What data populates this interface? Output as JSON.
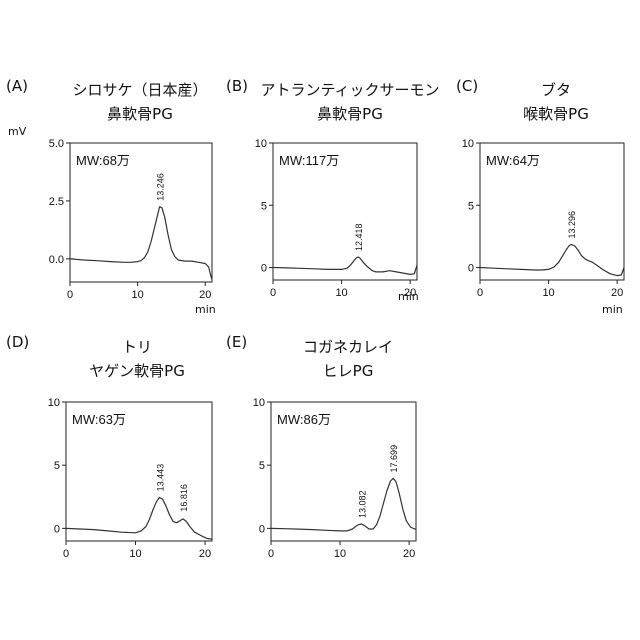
{
  "y_unit": "mV",
  "x_unit": "min",
  "chart_data": [
    {
      "type": "line",
      "panel": "(A)",
      "title": [
        "シロサケ（日本産）",
        "鼻軟骨PG"
      ],
      "annotation": "MW:68万",
      "xlabel": "min",
      "ylabel": "mV",
      "xlim": [
        0,
        21
      ],
      "ylim": [
        -1.0,
        5.0
      ],
      "xticks": [
        "0",
        "10",
        "20"
      ],
      "yticks": [
        "0.0",
        "2.5",
        "5.0"
      ],
      "peak_labels": [
        {
          "x": 13.246,
          "y": 2.25,
          "text": "13.246"
        }
      ],
      "series": [
        {
          "x": [
            0,
            2,
            4,
            6,
            8,
            9,
            10,
            10.5,
            11,
            11.5,
            12,
            12.5,
            13,
            13.25,
            13.6,
            14,
            14.5,
            15,
            15.5,
            16,
            17,
            18,
            19,
            20,
            20.5,
            20.8,
            21
          ],
          "y": [
            0.0,
            -0.05,
            -0.08,
            -0.12,
            -0.15,
            -0.15,
            -0.12,
            -0.08,
            0.05,
            0.3,
            0.75,
            1.35,
            1.95,
            2.25,
            2.2,
            1.8,
            1.05,
            0.4,
            0.1,
            -0.05,
            -0.1,
            -0.1,
            -0.15,
            -0.2,
            -0.35,
            -0.7,
            -0.9
          ]
        }
      ]
    },
    {
      "type": "line",
      "panel": "(B)",
      "title": [
        "アトランティックサーモン",
        "鼻軟骨PG"
      ],
      "annotation": "MW:117万",
      "xlabel": "min",
      "ylabel": "",
      "xlim": [
        0,
        21
      ],
      "ylim": [
        -1.0,
        10.0
      ],
      "xticks": [
        "0",
        "10",
        "20"
      ],
      "yticks": [
        "0",
        "5",
        "10"
      ],
      "peak_labels": [
        {
          "x": 12.418,
          "y": 0.85,
          "text": "12.418"
        }
      ],
      "series": [
        {
          "x": [
            0,
            2,
            4,
            6,
            8,
            10,
            10.8,
            11.3,
            11.8,
            12.2,
            12.42,
            12.7,
            13.2,
            13.8,
            14.5,
            15,
            16,
            17,
            18,
            19,
            20,
            20.6,
            21
          ],
          "y": [
            0.0,
            -0.03,
            -0.06,
            -0.1,
            -0.15,
            -0.15,
            -0.05,
            0.2,
            0.55,
            0.8,
            0.85,
            0.75,
            0.4,
            0.05,
            -0.25,
            -0.35,
            -0.35,
            -0.25,
            -0.35,
            -0.45,
            -0.55,
            -0.5,
            0.2
          ]
        }
      ]
    },
    {
      "type": "line",
      "panel": "(C)",
      "title": [
        "ブタ",
        "喉軟骨PG"
      ],
      "annotation": "MW:64万",
      "xlabel": "min",
      "ylabel": "",
      "xlim": [
        0,
        21
      ],
      "ylim": [
        -1.0,
        10.0
      ],
      "xticks": [
        "0",
        "10",
        "20"
      ],
      "yticks": [
        "0",
        "5",
        "10"
      ],
      "peak_labels": [
        {
          "x": 13.296,
          "y": 1.85,
          "text": "13.296"
        }
      ],
      "series": [
        {
          "x": [
            0,
            2,
            4,
            6,
            8,
            9,
            10,
            10.8,
            11.5,
            12,
            12.6,
            13,
            13.3,
            13.8,
            14.3,
            14.8,
            15.3,
            15.8,
            16.3,
            17,
            18,
            19,
            20,
            20.6,
            21
          ],
          "y": [
            0.0,
            -0.05,
            -0.1,
            -0.15,
            -0.2,
            -0.2,
            -0.15,
            0.05,
            0.45,
            0.9,
            1.45,
            1.75,
            1.85,
            1.75,
            1.4,
            0.95,
            0.7,
            0.55,
            0.45,
            0.2,
            -0.2,
            -0.5,
            -0.65,
            -0.6,
            0.0
          ]
        }
      ]
    },
    {
      "type": "line",
      "panel": "(D)",
      "title": [
        "トリ",
        "ヤゲン軟骨PG"
      ],
      "annotation": "MW:63万",
      "xlabel": "",
      "ylabel": "",
      "xlim": [
        0,
        21
      ],
      "ylim": [
        -1.0,
        10.0
      ],
      "xticks": [
        "0",
        "10",
        "20"
      ],
      "yticks": [
        "0",
        "5",
        "10"
      ],
      "peak_labels": [
        {
          "x": 13.443,
          "y": 2.45,
          "text": "13.443"
        },
        {
          "x": 16.816,
          "y": 0.85,
          "text": "16.816"
        }
      ],
      "series": [
        {
          "x": [
            0,
            2,
            4,
            6,
            8,
            10,
            10.8,
            11.5,
            12,
            12.5,
            13,
            13.44,
            13.9,
            14.4,
            14.9,
            15.4,
            15.9,
            16.4,
            16.82,
            17.3,
            17.8,
            18.5,
            19.5,
            20.3,
            21
          ],
          "y": [
            0.0,
            -0.05,
            -0.1,
            -0.2,
            -0.3,
            -0.35,
            -0.2,
            0.15,
            0.7,
            1.45,
            2.1,
            2.45,
            2.3,
            1.75,
            1.05,
            0.55,
            0.45,
            0.6,
            0.75,
            0.55,
            0.15,
            -0.3,
            -0.6,
            -0.8,
            -0.85
          ]
        }
      ]
    },
    {
      "type": "line",
      "panel": "(E)",
      "title": [
        "コガネカレイ",
        "ヒレPG"
      ],
      "annotation": "MW:86万",
      "xlabel": "",
      "ylabel": "",
      "xlim": [
        0,
        21
      ],
      "ylim": [
        -1.0,
        10.0
      ],
      "xticks": [
        "0",
        "10",
        "20"
      ],
      "yticks": [
        "0",
        "5",
        "10"
      ],
      "peak_labels": [
        {
          "x": 13.082,
          "y": 0.35,
          "text": "13.082"
        },
        {
          "x": 17.699,
          "y": 3.95,
          "text": "17.699"
        }
      ],
      "series": [
        {
          "x": [
            0,
            2,
            4,
            6,
            8,
            10,
            11,
            11.8,
            12.5,
            13.08,
            13.6,
            14.2,
            14.8,
            15.3,
            15.8,
            16.3,
            16.8,
            17.3,
            17.7,
            18.1,
            18.6,
            19.1,
            19.6,
            20.2,
            20.8,
            21
          ],
          "y": [
            0.0,
            -0.03,
            -0.06,
            -0.1,
            -0.15,
            -0.2,
            -0.2,
            -0.05,
            0.25,
            0.35,
            0.2,
            -0.05,
            -0.05,
            0.3,
            1.0,
            2.0,
            3.0,
            3.75,
            3.95,
            3.7,
            2.7,
            1.5,
            0.6,
            0.1,
            -0.05,
            -0.05
          ]
        }
      ]
    }
  ]
}
